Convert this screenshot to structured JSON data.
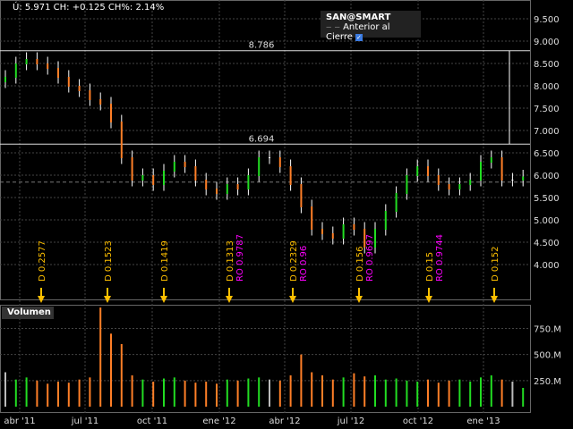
{
  "header": {
    "quote": "Ú: 5.971 CH: +0.125 CH%: 2.14%"
  },
  "legend": {
    "symbol": "SAN@SMART",
    "line_label": "Anterior al Cierre",
    "checked": true
  },
  "volume_panel": {
    "label": "Volumen"
  },
  "colors": {
    "up": "#22dd22",
    "down": "#ff7f27",
    "neutral": "#ffffff",
    "dividend": "#ffc000",
    "ro": "#ff00ff"
  },
  "chart_data": [
    {
      "type": "ohlc",
      "yticks": [
        "9.500",
        "9.000",
        "8.500",
        "8.000",
        "7.500",
        "7.000",
        "6.500",
        "6.000",
        "5.500",
        "5.000",
        "4.500",
        "4.000"
      ],
      "ylim": [
        3.6,
        9.9
      ],
      "xticks": [
        "abr '11",
        "jul '11",
        "oct '11",
        "ene '12",
        "abr '12",
        "jul '12",
        "oct '12",
        "ene '13"
      ],
      "hlines": [
        {
          "value": 8.786,
          "label": "8.786"
        },
        {
          "value": 6.694,
          "label": "6.694"
        }
      ],
      "previous_close": 5.846,
      "closes": [
        8.2,
        8.5,
        8.6,
        8.5,
        8.4,
        8.2,
        8.0,
        7.9,
        7.7,
        7.6,
        7.2,
        6.4,
        5.9,
        6.0,
        5.8,
        6.1,
        6.3,
        6.2,
        5.9,
        5.7,
        5.6,
        5.8,
        5.7,
        6.0,
        6.4,
        6.4,
        6.2,
        5.8,
        5.3,
        4.8,
        4.7,
        4.6,
        4.9,
        4.8,
        4.4,
        4.8,
        5.2,
        5.6,
        6.0,
        6.2,
        6.0,
        5.8,
        5.7,
        5.8,
        5.9,
        6.3,
        6.4,
        5.9,
        5.9,
        5.97
      ],
      "events": [
        {
          "d": "D 0.2577",
          "ro": ""
        },
        {
          "d": "D 0.1523",
          "ro": ""
        },
        {
          "d": "D 0.1419",
          "ro": ""
        },
        {
          "d": "D 0.1313",
          "ro": "RO 0.9787"
        },
        {
          "d": "D 0.2329",
          "ro": "RO 0.96"
        },
        {
          "d": "D 0.156",
          "ro": "RO 0.9697"
        },
        {
          "d": "D 0.15",
          "ro": "RO 0.9744"
        },
        {
          "d": "D 0.152",
          "ro": ""
        }
      ]
    },
    {
      "type": "bar",
      "name": "Volumen",
      "yticks": [
        "750.M",
        "500.M",
        "250.M"
      ],
      "values": [
        330,
        260,
        280,
        250,
        220,
        240,
        230,
        260,
        280,
        950,
        700,
        600,
        300,
        260,
        240,
        270,
        280,
        250,
        230,
        240,
        220,
        260,
        250,
        270,
        280,
        260,
        250,
        300,
        500,
        330,
        300,
        260,
        280,
        320,
        290,
        300,
        260,
        270,
        250,
        240,
        260,
        230,
        250,
        260,
        240,
        280,
        300,
        260,
        240,
        180
      ]
    }
  ]
}
